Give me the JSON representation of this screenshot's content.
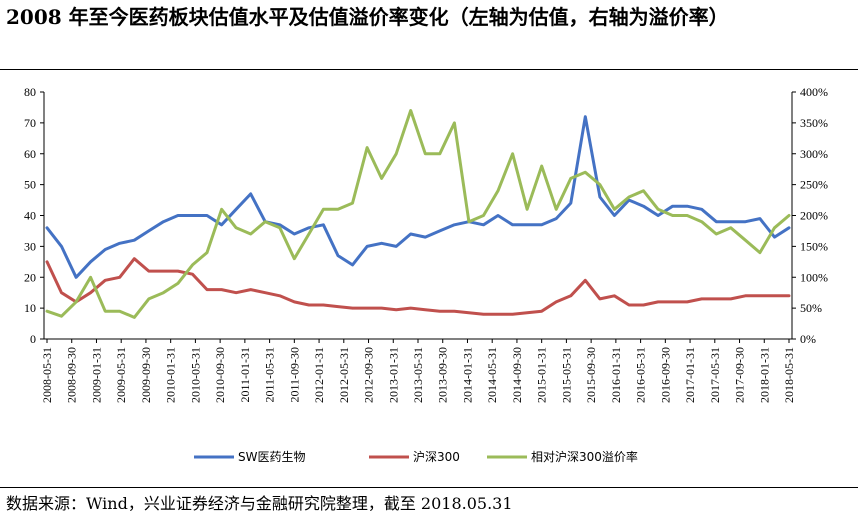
{
  "title": "2008 年至今医药板块估值水平及估值溢价率变化（左轴为估值，右轴为溢价率）",
  "source": "数据来源：Wind，兴业证券经济与金融研究院整理，截至 2018.05.31",
  "colors": {
    "sw": "#4472C4",
    "hs300": "#C0504D",
    "premium": "#9BBB59"
  },
  "chart_data": {
    "type": "line",
    "title": "2008 年至今医药板块估值水平及估值溢价率变化（左轴为估值，右轴为溢价率）",
    "x_ticks": [
      "2008-05-31",
      "2008-09-30",
      "2009-01-31",
      "2009-05-31",
      "2009-09-30",
      "2010-01-31",
      "2010-05-31",
      "2010-09-30",
      "2011-01-31",
      "2011-05-31",
      "2011-09-30",
      "2012-01-31",
      "2012-05-31",
      "2012-09-30",
      "2013-01-31",
      "2013-05-31",
      "2013-09-30",
      "2014-01-31",
      "2014-05-31",
      "2014-09-30",
      "2015-01-31",
      "2015-05-31",
      "2015-09-30",
      "2016-01-31",
      "2016-05-31",
      "2016-09-30",
      "2017-01-31",
      "2017-05-31",
      "2017-09-30",
      "2018-01-31",
      "2018-05-31"
    ],
    "y_left": {
      "min": 0,
      "max": 80,
      "step": 10,
      "ticks": [
        "0",
        "10",
        "20",
        "30",
        "40",
        "50",
        "60",
        "70",
        "80"
      ]
    },
    "y_right": {
      "min": 0,
      "max": 4,
      "step": 0.5,
      "ticks": [
        "0%",
        "50%",
        "100%",
        "150%",
        "200%",
        "250%",
        "300%",
        "350%",
        "400%"
      ]
    },
    "legend": {
      "position": "bottom"
    },
    "series": [
      {
        "name": "SW医药生物",
        "axis": "left",
        "values": [
          36,
          30,
          20,
          25,
          29,
          31,
          32,
          35,
          38,
          40,
          40,
          40,
          37,
          42,
          47,
          38,
          37,
          34,
          36,
          37,
          27,
          24,
          30,
          31,
          30,
          34,
          33,
          35,
          37,
          38,
          37,
          40,
          37,
          37,
          37,
          39,
          44,
          72,
          46,
          40,
          45,
          43,
          40,
          43,
          43,
          42,
          38,
          38,
          38,
          39,
          33,
          36
        ]
      },
      {
        "name": "沪深300",
        "axis": "left",
        "values": [
          25,
          15,
          12,
          15,
          19,
          20,
          26,
          22,
          22,
          22,
          21,
          16,
          16,
          15,
          16,
          15,
          14,
          12,
          11,
          11,
          10.5,
          10,
          10,
          10,
          9.5,
          10,
          9.5,
          9,
          9,
          8.5,
          8,
          8,
          8,
          8.5,
          9,
          12,
          14,
          19,
          13,
          14,
          11,
          11,
          12,
          12,
          12,
          13,
          13,
          13,
          14,
          14,
          14,
          14
        ]
      },
      {
        "name": "相对沪深300溢价率",
        "axis": "right",
        "values": [
          0.45,
          0.37,
          0.6,
          1.0,
          0.45,
          0.45,
          0.35,
          0.65,
          0.75,
          0.9,
          1.2,
          1.4,
          2.1,
          1.8,
          1.7,
          1.9,
          1.8,
          1.3,
          1.7,
          2.1,
          2.1,
          2.2,
          3.1,
          2.6,
          3.0,
          3.7,
          3.0,
          3.0,
          3.5,
          1.9,
          2.0,
          2.4,
          3.0,
          2.1,
          2.8,
          2.1,
          2.6,
          2.7,
          2.5,
          2.1,
          2.3,
          2.4,
          2.1,
          2.0,
          2.0,
          1.9,
          1.7,
          1.8,
          1.6,
          1.4,
          1.8,
          2.0
        ]
      }
    ]
  }
}
